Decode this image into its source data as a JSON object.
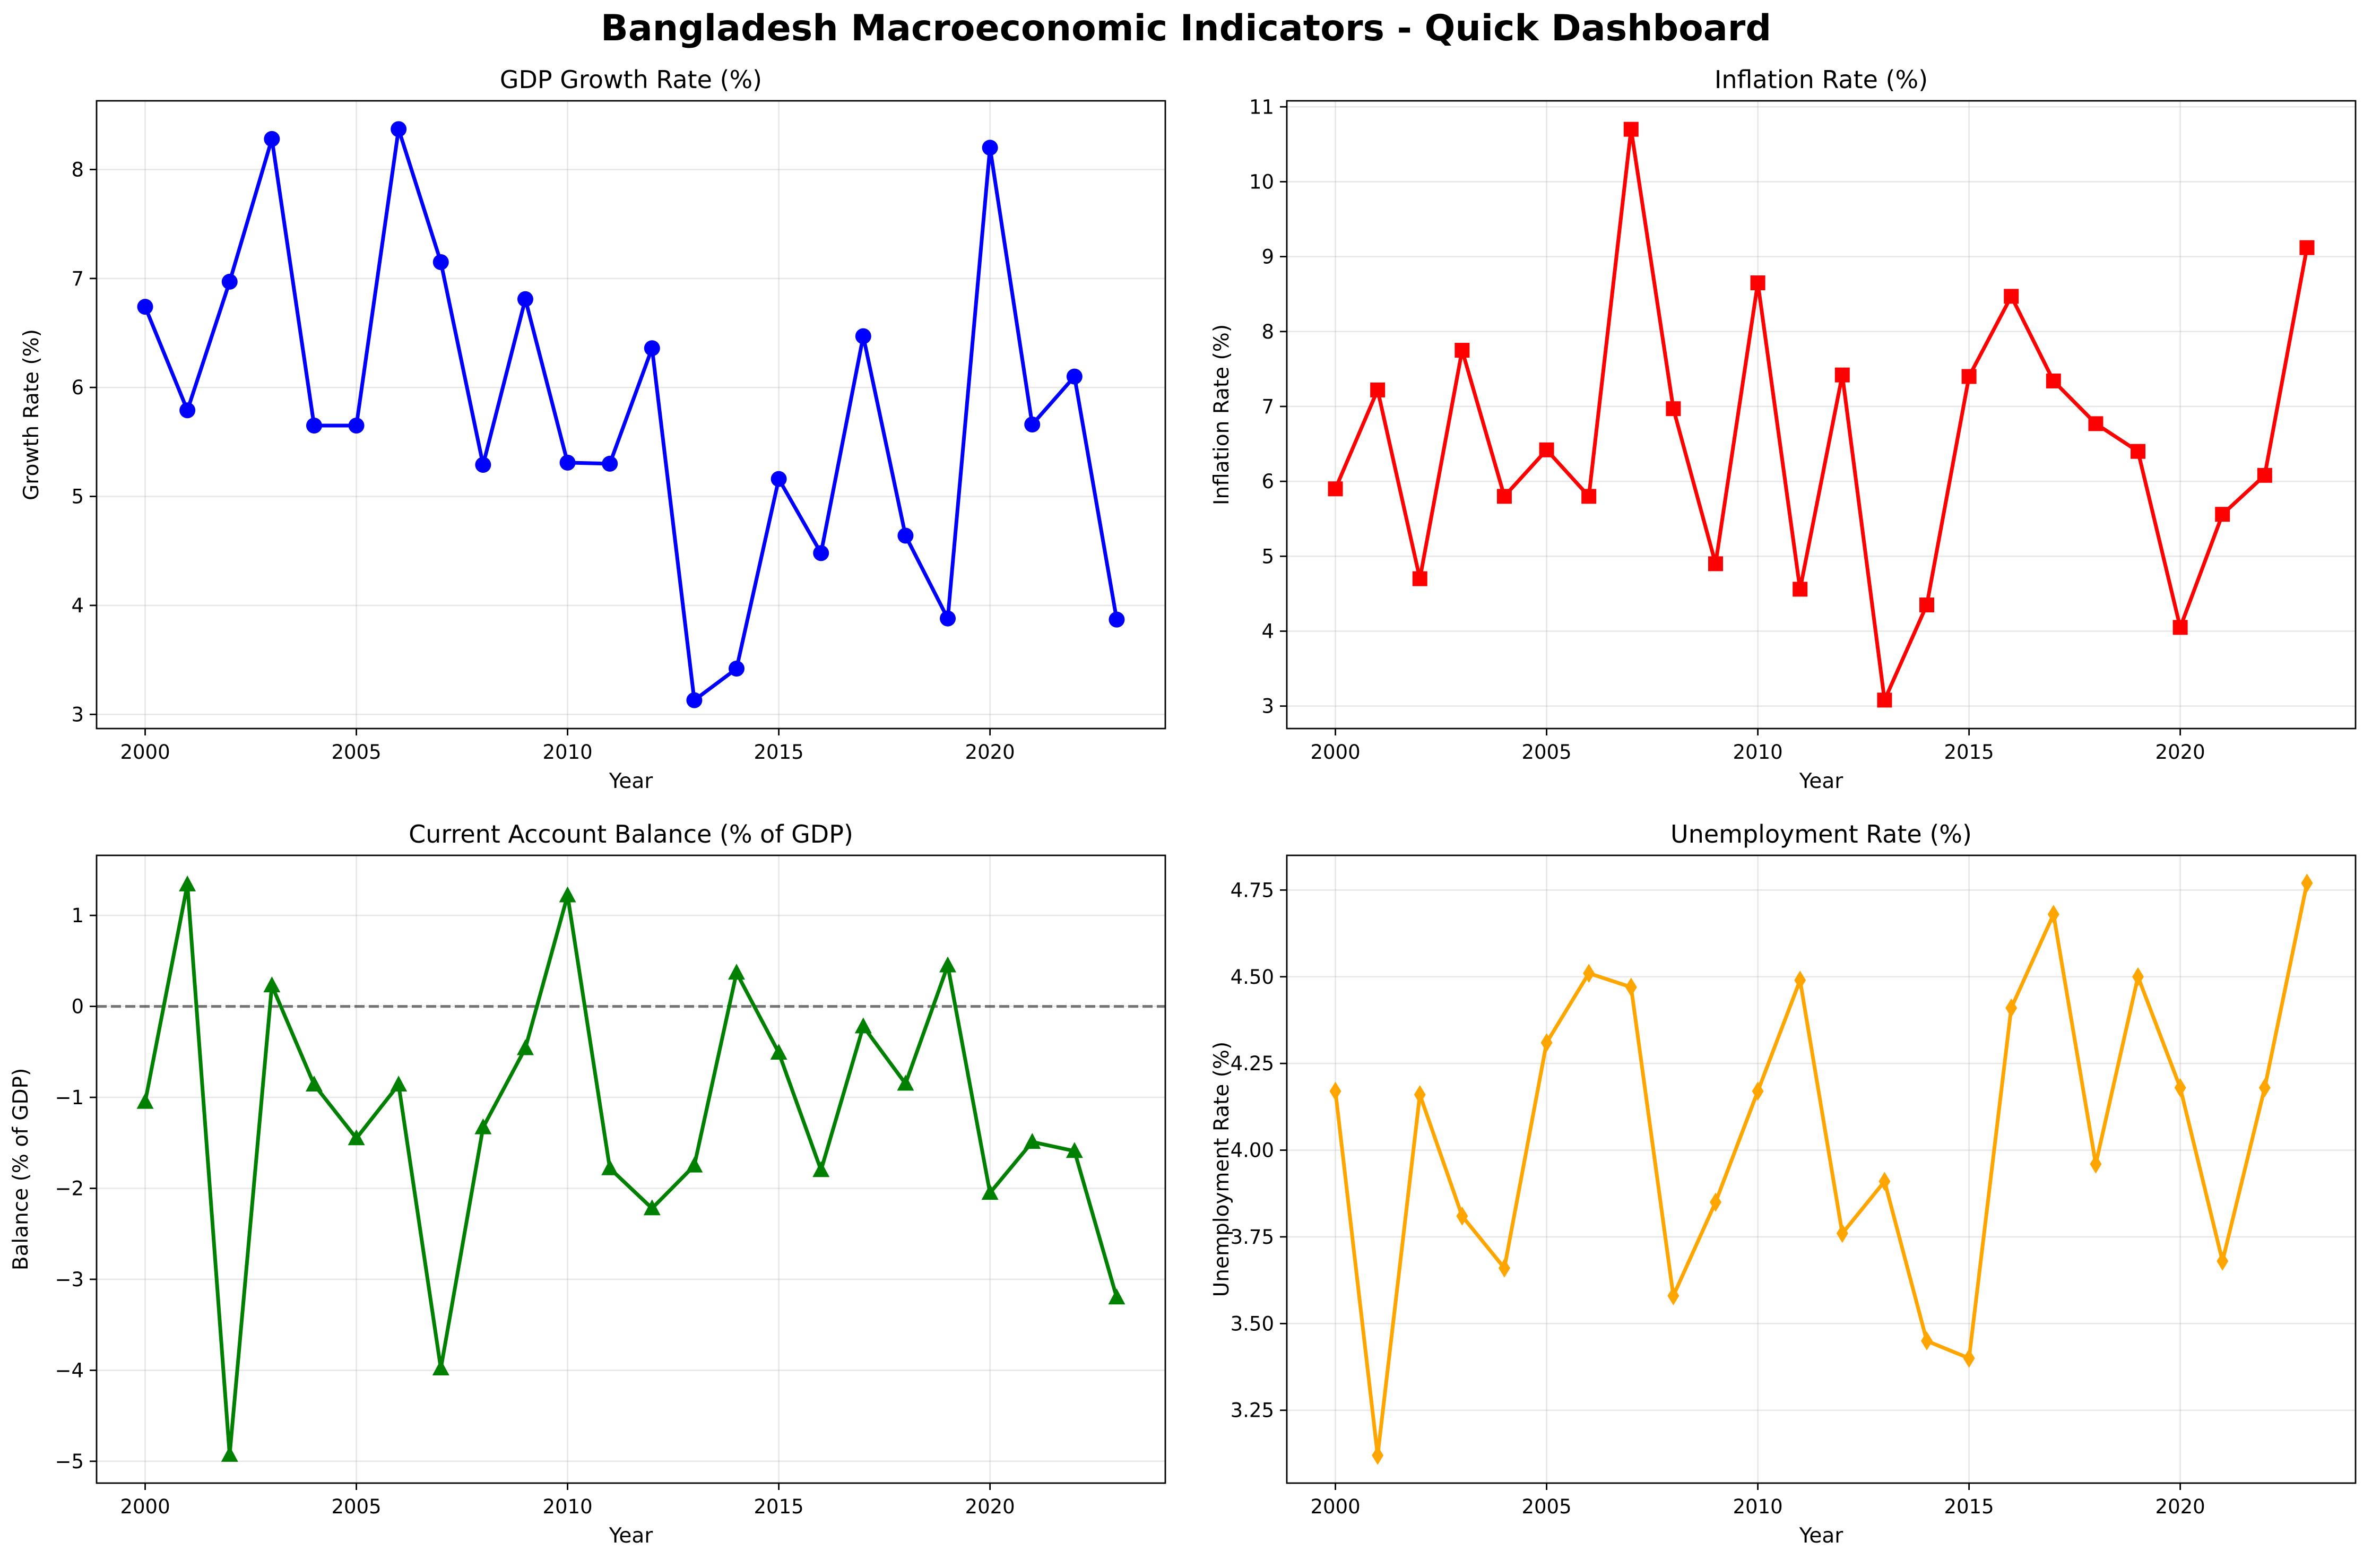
{
  "title": "Bangladesh Macroeconomic Indicators - Quick Dashboard",
  "chart_data": [
    {
      "type": "line",
      "title": "GDP Growth Rate (%)",
      "xlabel": "Year",
      "ylabel": "Growth Rate (%)",
      "x": [
        2000,
        2001,
        2002,
        2003,
        2004,
        2005,
        2006,
        2007,
        2008,
        2009,
        2010,
        2011,
        2012,
        2013,
        2014,
        2015,
        2016,
        2017,
        2018,
        2019,
        2020,
        2021,
        2022,
        2023
      ],
      "series": [
        {
          "values": [
            6.74,
            5.79,
            6.97,
            8.28,
            5.65,
            5.65,
            8.37,
            7.15,
            5.29,
            6.81,
            5.31,
            5.3,
            6.36,
            3.13,
            3.42,
            5.16,
            4.48,
            6.47,
            4.64,
            3.88,
            8.2,
            5.66,
            6.1,
            3.87
          ],
          "color": "#0000ff",
          "marker": "circle"
        }
      ],
      "xlim": [
        1998.85,
        2024.15
      ],
      "ylim": [
        2.87,
        8.63
      ],
      "xticks": [
        2000,
        2005,
        2010,
        2015,
        2020
      ],
      "yticks": [
        3,
        4,
        5,
        6,
        7,
        8
      ],
      "grid": true
    },
    {
      "type": "line",
      "title": "Inflation Rate (%)",
      "xlabel": "Year",
      "ylabel": "Inflation Rate (%)",
      "x": [
        2000,
        2001,
        2002,
        2003,
        2004,
        2005,
        2006,
        2007,
        2008,
        2009,
        2010,
        2011,
        2012,
        2013,
        2014,
        2015,
        2016,
        2017,
        2018,
        2019,
        2020,
        2021,
        2022,
        2023
      ],
      "series": [
        {
          "values": [
            5.9,
            7.22,
            4.7,
            7.75,
            5.8,
            6.42,
            5.8,
            10.7,
            6.97,
            4.9,
            8.65,
            4.56,
            7.42,
            3.08,
            4.35,
            7.4,
            8.47,
            7.34,
            6.77,
            6.4,
            4.05,
            5.56,
            6.08,
            9.12
          ],
          "color": "#ff0000",
          "marker": "square"
        }
      ],
      "xlim": [
        1998.85,
        2024.15
      ],
      "ylim": [
        2.7,
        11.08
      ],
      "xticks": [
        2000,
        2005,
        2010,
        2015,
        2020
      ],
      "yticks": [
        3,
        4,
        5,
        6,
        7,
        8,
        9,
        10,
        11
      ],
      "grid": true
    },
    {
      "type": "line",
      "title": "Current Account Balance (% of GDP)",
      "xlabel": "Year",
      "ylabel": "Balance (% of GDP)",
      "x": [
        2000,
        2001,
        2002,
        2003,
        2004,
        2005,
        2006,
        2007,
        2008,
        2009,
        2010,
        2011,
        2012,
        2013,
        2014,
        2015,
        2016,
        2017,
        2018,
        2019,
        2020,
        2021,
        2022,
        2023
      ],
      "series": [
        {
          "values": [
            -1.05,
            1.34,
            -4.93,
            0.23,
            -0.86,
            -1.45,
            -0.86,
            -3.98,
            -1.33,
            -0.46,
            1.22,
            -1.78,
            -2.22,
            -1.75,
            0.37,
            -0.51,
            -1.8,
            -0.22,
            -0.85,
            0.45,
            -2.05,
            -1.49,
            -1.59,
            -3.2
          ],
          "color": "#008000",
          "marker": "triangle"
        }
      ],
      "xlim": [
        1998.85,
        2024.15
      ],
      "ylim": [
        -5.24,
        1.66
      ],
      "xticks": [
        2000,
        2005,
        2010,
        2015,
        2020
      ],
      "yticks": [
        -5,
        -4,
        -3,
        -2,
        -1,
        0,
        1
      ],
      "ytick_labels": [
        "−5",
        "−4",
        "−3",
        "−2",
        "−1",
        "0",
        "1"
      ],
      "reference_line": 0,
      "grid": true
    },
    {
      "type": "line",
      "title": "Unemployment Rate (%)",
      "xlabel": "Year",
      "ylabel": "Unemployment Rate (%)",
      "x": [
        2000,
        2001,
        2002,
        2003,
        2004,
        2005,
        2006,
        2007,
        2008,
        2009,
        2010,
        2011,
        2012,
        2013,
        2014,
        2015,
        2016,
        2017,
        2018,
        2019,
        2020,
        2021,
        2022,
        2023
      ],
      "series": [
        {
          "values": [
            4.17,
            3.12,
            4.16,
            3.81,
            3.66,
            4.31,
            4.51,
            4.47,
            3.58,
            3.85,
            4.17,
            4.49,
            3.76,
            3.91,
            3.45,
            3.4,
            4.41,
            4.68,
            3.96,
            4.5,
            4.18,
            3.68,
            4.18,
            4.77
          ],
          "color": "#ffa500",
          "marker": "diamond"
        }
      ],
      "xlim": [
        1998.85,
        2024.15
      ],
      "ylim": [
        3.04,
        4.85
      ],
      "xticks": [
        2000,
        2005,
        2010,
        2015,
        2020
      ],
      "yticks": [
        3.25,
        3.5,
        3.75,
        4.0,
        4.25,
        4.5,
        4.75
      ],
      "ytick_labels": [
        "3.25",
        "3.50",
        "3.75",
        "4.00",
        "4.25",
        "4.50",
        "4.75"
      ],
      "grid": true
    }
  ]
}
